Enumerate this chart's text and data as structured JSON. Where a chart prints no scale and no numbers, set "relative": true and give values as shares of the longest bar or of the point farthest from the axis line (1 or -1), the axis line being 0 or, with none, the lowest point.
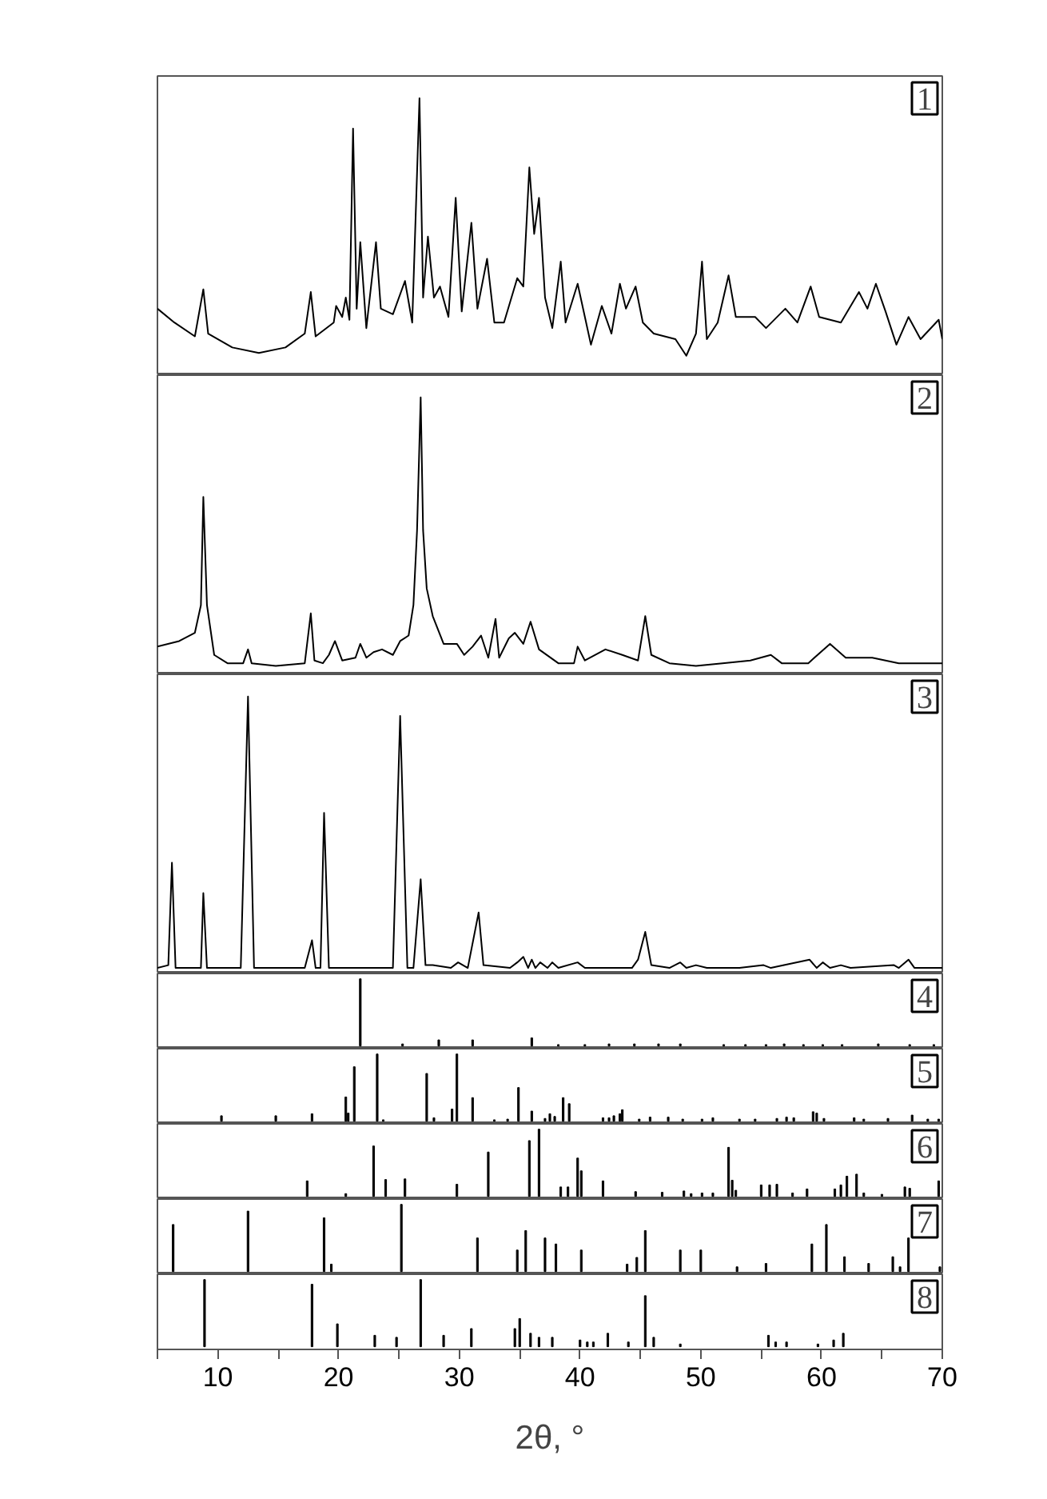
{
  "chart_data": [
    {
      "type": "line",
      "relative": true,
      "xlim": [
        5,
        70
      ],
      "xticks": [
        10,
        20,
        30,
        40,
        50,
        60,
        70
      ],
      "tick_labels": false,
      "annotations": [
        "1"
      ],
      "color": "#000000",
      "x": [
        5.0,
        6.4,
        8.1,
        8.8,
        9.2,
        11.2,
        13.4,
        15.6,
        17.2,
        17.7,
        18.1,
        19.6,
        19.8,
        20.3,
        20.6,
        20.9,
        21.2,
        21.5,
        21.8,
        22.3,
        23.1,
        23.5,
        24.5,
        25.5,
        26.1,
        26.7,
        27.0,
        27.4,
        27.9,
        28.4,
        29.1,
        29.7,
        30.2,
        31.0,
        31.5,
        32.3,
        32.9,
        33.7,
        34.8,
        35.3,
        35.8,
        36.2,
        36.6,
        37.1,
        37.7,
        38.4,
        38.8,
        39.8,
        40.4,
        40.9,
        41.8,
        42.6,
        43.3,
        43.8,
        44.6,
        45.2,
        46.1,
        47.9,
        48.8,
        49.6,
        50.1,
        50.5,
        51.4,
        52.3,
        52.9,
        54.5,
        55.4,
        57.0,
        58.0,
        59.1,
        59.8,
        61.6,
        63.1,
        63.8,
        64.5,
        65.3,
        66.2,
        67.2,
        68.2,
        69.7,
        70.0
      ],
      "values": [
        0.24,
        0.19,
        0.14,
        0.31,
        0.15,
        0.1,
        0.08,
        0.1,
        0.15,
        0.3,
        0.14,
        0.19,
        0.25,
        0.21,
        0.28,
        0.2,
        0.89,
        0.24,
        0.48,
        0.17,
        0.48,
        0.24,
        0.22,
        0.34,
        0.19,
        1.0,
        0.28,
        0.5,
        0.28,
        0.32,
        0.21,
        0.64,
        0.23,
        0.55,
        0.24,
        0.42,
        0.19,
        0.19,
        0.35,
        0.32,
        0.75,
        0.51,
        0.64,
        0.28,
        0.17,
        0.41,
        0.19,
        0.33,
        0.21,
        0.11,
        0.25,
        0.15,
        0.33,
        0.24,
        0.32,
        0.19,
        0.15,
        0.13,
        0.07,
        0.15,
        0.41,
        0.13,
        0.19,
        0.36,
        0.21,
        0.21,
        0.17,
        0.24,
        0.19,
        0.32,
        0.21,
        0.19,
        0.3,
        0.24,
        0.33,
        0.23,
        0.11,
        0.21,
        0.13,
        0.2,
        0.13
      ]
    },
    {
      "type": "line",
      "relative": true,
      "xlim": [
        5,
        70
      ],
      "xticks": [
        10,
        20,
        30,
        40,
        50,
        60,
        70
      ],
      "tick_labels": false,
      "annotations": [
        "2"
      ],
      "color": "#000000",
      "x": [
        5.0,
        6.8,
        8.1,
        8.6,
        8.8,
        9.1,
        9.7,
        10.8,
        12.1,
        12.5,
        12.8,
        14.8,
        17.2,
        17.7,
        18.0,
        18.7,
        19.2,
        19.7,
        20.3,
        21.4,
        21.8,
        22.3,
        22.9,
        23.6,
        24.5,
        25.1,
        25.8,
        26.2,
        26.5,
        26.8,
        27.0,
        27.3,
        27.8,
        28.7,
        29.8,
        30.4,
        31.1,
        31.8,
        32.4,
        33.0,
        33.3,
        34.1,
        34.6,
        35.3,
        35.9,
        36.6,
        38.2,
        39.5,
        39.8,
        40.4,
        42.1,
        43.5,
        44.8,
        45.4,
        45.9,
        47.4,
        49.6,
        51.8,
        54.1,
        55.8,
        56.7,
        58.9,
        60.7,
        62.0,
        64.2,
        66.4,
        68.6,
        70.0
      ],
      "values": [
        0.1,
        0.12,
        0.15,
        0.25,
        0.64,
        0.25,
        0.07,
        0.04,
        0.04,
        0.09,
        0.04,
        0.03,
        0.04,
        0.22,
        0.05,
        0.04,
        0.07,
        0.12,
        0.05,
        0.06,
        0.11,
        0.06,
        0.08,
        0.09,
        0.07,
        0.12,
        0.14,
        0.25,
        0.52,
        1.0,
        0.52,
        0.31,
        0.21,
        0.11,
        0.11,
        0.07,
        0.1,
        0.14,
        0.06,
        0.2,
        0.06,
        0.13,
        0.15,
        0.11,
        0.19,
        0.09,
        0.04,
        0.04,
        0.1,
        0.05,
        0.09,
        0.07,
        0.05,
        0.21,
        0.07,
        0.04,
        0.03,
        0.04,
        0.05,
        0.07,
        0.04,
        0.04,
        0.11,
        0.06,
        0.06,
        0.04,
        0.04,
        0.04
      ]
    },
    {
      "type": "line",
      "relative": true,
      "xlim": [
        5,
        70
      ],
      "xticks": [
        10,
        20,
        30,
        40,
        50,
        60,
        70
      ],
      "tick_labels": false,
      "annotations": [
        "3"
      ],
      "color": "#000000",
      "x": [
        5.0,
        5.9,
        6.2,
        6.5,
        8.6,
        8.8,
        9.1,
        11.9,
        12.5,
        13.0,
        17.2,
        17.8,
        18.1,
        18.5,
        18.8,
        19.2,
        20.1,
        24.5,
        25.1,
        25.7,
        26.2,
        26.8,
        27.2,
        27.8,
        29.3,
        29.9,
        30.7,
        31.6,
        32.0,
        34.2,
        34.8,
        35.3,
        35.7,
        36.0,
        36.3,
        36.7,
        37.3,
        37.7,
        38.2,
        39.8,
        40.4,
        44.3,
        44.8,
        45.4,
        45.9,
        47.4,
        48.3,
        48.8,
        49.6,
        50.5,
        53.2,
        55.2,
        55.8,
        59.0,
        59.6,
        60.1,
        60.7,
        61.6,
        62.4,
        66.0,
        66.4,
        67.2,
        67.7,
        69.5,
        70.0
      ],
      "values": [
        0.02,
        0.03,
        0.4,
        0.02,
        0.02,
        0.29,
        0.02,
        0.02,
        1.0,
        0.02,
        0.02,
        0.12,
        0.02,
        0.02,
        0.58,
        0.02,
        0.02,
        0.02,
        0.93,
        0.02,
        0.02,
        0.34,
        0.03,
        0.03,
        0.02,
        0.04,
        0.02,
        0.22,
        0.03,
        0.02,
        0.04,
        0.06,
        0.02,
        0.05,
        0.02,
        0.04,
        0.02,
        0.04,
        0.02,
        0.04,
        0.02,
        0.02,
        0.05,
        0.15,
        0.03,
        0.02,
        0.04,
        0.02,
        0.03,
        0.02,
        0.02,
        0.03,
        0.02,
        0.05,
        0.02,
        0.04,
        0.02,
        0.03,
        0.02,
        0.03,
        0.02,
        0.05,
        0.02,
        0.02,
        0.02
      ]
    },
    {
      "type": "bar",
      "relative": true,
      "xlim": [
        5,
        70
      ],
      "xticks": [
        10,
        20,
        30,
        40,
        50,
        60,
        70
      ],
      "tick_labels": false,
      "annotations": [
        "4"
      ],
      "color": "#000000",
      "x": [
        21.8,
        25.3,
        28.3,
        31.1,
        36.0,
        38.2,
        40.4,
        42.4,
        44.5,
        46.5,
        48.3,
        51.9,
        53.7,
        55.4,
        56.9,
        58.5,
        60.1,
        61.7,
        64.7,
        67.3,
        69.3
      ],
      "values": [
        1.0,
        0.03,
        0.09,
        0.09,
        0.12,
        0.02,
        0.02,
        0.03,
        0.03,
        0.03,
        0.03,
        0.02,
        0.02,
        0.02,
        0.03,
        0.02,
        0.02,
        0.02,
        0.03,
        0.02,
        0.02
      ]
    },
    {
      "type": "bar",
      "relative": true,
      "xlim": [
        5,
        70
      ],
      "xticks": [
        10,
        20,
        30,
        40,
        50,
        60,
        70
      ],
      "tick_labels": false,
      "annotations": [
        "5"
      ],
      "color": "#000000",
      "x": [
        10.3,
        14.8,
        17.8,
        20.6,
        20.8,
        21.3,
        23.2,
        23.7,
        27.3,
        27.9,
        29.4,
        29.8,
        31.1,
        32.9,
        34.0,
        34.9,
        36.0,
        37.1,
        37.5,
        37.9,
        38.6,
        39.1,
        41.9,
        42.4,
        42.8,
        43.3,
        43.5,
        44.9,
        45.8,
        47.3,
        48.5,
        50.1,
        51.0,
        53.2,
        54.5,
        56.3,
        57.1,
        57.7,
        59.3,
        59.6,
        60.2,
        62.7,
        63.5,
        65.5,
        67.5,
        68.8,
        69.7
      ],
      "values": [
        0.08,
        0.08,
        0.11,
        0.36,
        0.12,
        0.81,
        1.0,
        0.02,
        0.71,
        0.05,
        0.18,
        1.0,
        0.35,
        0.02,
        0.03,
        0.5,
        0.15,
        0.04,
        0.11,
        0.07,
        0.35,
        0.26,
        0.05,
        0.05,
        0.08,
        0.11,
        0.17,
        0.03,
        0.06,
        0.06,
        0.03,
        0.03,
        0.05,
        0.03,
        0.03,
        0.04,
        0.06,
        0.05,
        0.14,
        0.12,
        0.04,
        0.05,
        0.03,
        0.04,
        0.09,
        0.03,
        0.03
      ]
    },
    {
      "type": "bar",
      "relative": true,
      "xlim": [
        5,
        70
      ],
      "xticks": [
        10,
        20,
        30,
        40,
        50,
        60,
        70
      ],
      "tick_labels": false,
      "annotations": [
        "6"
      ],
      "color": "#000000",
      "x": [
        17.4,
        20.6,
        22.9,
        23.9,
        25.5,
        29.8,
        32.4,
        35.8,
        36.6,
        38.4,
        39.0,
        39.8,
        40.1,
        41.9,
        44.6,
        46.8,
        48.6,
        49.2,
        50.1,
        51.0,
        52.3,
        52.6,
        52.9,
        55.0,
        55.7,
        56.3,
        57.6,
        58.8,
        61.1,
        61.6,
        62.1,
        62.9,
        63.5,
        65.0,
        66.9,
        67.3,
        69.7
      ],
      "values": [
        0.23,
        0.04,
        0.75,
        0.25,
        0.26,
        0.18,
        0.66,
        0.83,
        1.0,
        0.14,
        0.14,
        0.57,
        0.38,
        0.23,
        0.07,
        0.06,
        0.08,
        0.04,
        0.05,
        0.05,
        0.73,
        0.24,
        0.09,
        0.17,
        0.17,
        0.18,
        0.05,
        0.11,
        0.11,
        0.17,
        0.3,
        0.33,
        0.05,
        0.03,
        0.14,
        0.12,
        0.23
      ]
    },
    {
      "type": "bar",
      "relative": true,
      "xlim": [
        5,
        70
      ],
      "xticks": [
        10,
        20,
        30,
        40,
        50,
        60,
        70
      ],
      "tick_labels": false,
      "annotations": [
        "7"
      ],
      "color": "#000000",
      "x": [
        6.3,
        12.5,
        18.8,
        19.4,
        25.2,
        31.5,
        34.8,
        35.5,
        37.1,
        38.0,
        40.1,
        43.9,
        44.7,
        45.4,
        48.3,
        50.0,
        53.0,
        55.4,
        59.2,
        60.4,
        61.9,
        63.9,
        65.9,
        66.5,
        67.2,
        69.8
      ],
      "values": [
        0.7,
        0.9,
        0.8,
        0.11,
        1.0,
        0.5,
        0.32,
        0.61,
        0.5,
        0.41,
        0.32,
        0.11,
        0.21,
        0.61,
        0.32,
        0.32,
        0.07,
        0.12,
        0.41,
        0.7,
        0.22,
        0.12,
        0.22,
        0.07,
        0.5,
        0.07
      ]
    },
    {
      "type": "bar",
      "relative": true,
      "xlim": [
        5,
        70
      ],
      "xticks": [
        {
          "value": 5,
          "label": null
        },
        10,
        {
          "value": 15,
          "label": null
        },
        20,
        {
          "value": 25,
          "label": null
        },
        30,
        {
          "value": 35,
          "label": null
        },
        40,
        {
          "value": 45,
          "label": null
        },
        50,
        {
          "value": 55,
          "label": null
        },
        60,
        {
          "value": 65,
          "label": null
        },
        70
      ],
      "tick_labels": "x",
      "xlabel": "2θ, °",
      "annotations": [
        "8"
      ],
      "color": "#000000",
      "x": [
        8.9,
        17.8,
        19.9,
        23.0,
        24.8,
        26.8,
        28.7,
        31.0,
        34.6,
        35.0,
        35.9,
        36.6,
        37.7,
        40.0,
        40.6,
        41.1,
        42.3,
        44.0,
        45.4,
        46.1,
        48.3,
        55.6,
        56.2,
        57.1,
        59.7,
        61.0,
        61.8
      ],
      "values": [
        1.0,
        0.93,
        0.34,
        0.17,
        0.14,
        1.0,
        0.17,
        0.27,
        0.27,
        0.42,
        0.2,
        0.14,
        0.14,
        0.1,
        0.07,
        0.07,
        0.2,
        0.07,
        0.76,
        0.14,
        0.04,
        0.17,
        0.07,
        0.07,
        0.04,
        0.1,
        0.2
      ]
    }
  ]
}
